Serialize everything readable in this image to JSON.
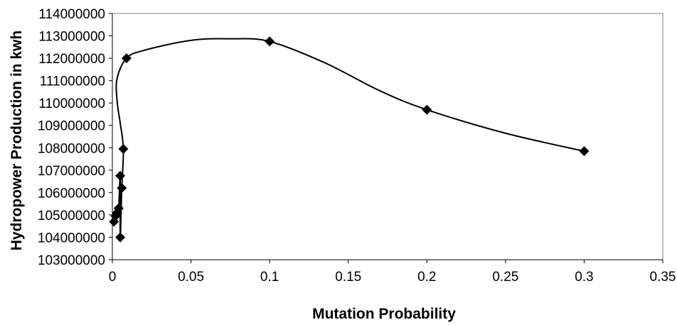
{
  "chart_data": {
    "type": "scatter",
    "title": "",
    "xlabel": "Mutation Probability",
    "ylabel": "Hydropower Production in kwh",
    "xlim": [
      0,
      0.35
    ],
    "ylim": [
      103000000,
      114000000
    ],
    "x_ticks": [
      0,
      0.05,
      0.1,
      0.15,
      0.2,
      0.25,
      0.3,
      0.35
    ],
    "x_tick_labels": [
      "0",
      "0.05",
      "0.1",
      "0.15",
      "0.2",
      "0.25",
      "0.3",
      "0.35"
    ],
    "y_ticks": [
      103000000,
      104000000,
      105000000,
      106000000,
      107000000,
      108000000,
      109000000,
      110000000,
      111000000,
      112000000,
      113000000,
      114000000
    ],
    "y_tick_labels": [
      "103000000",
      "104000000",
      "105000000",
      "106000000",
      "107000000",
      "108000000",
      "109000000",
      "110000000",
      "111000000",
      "112000000",
      "113000000",
      "114000000"
    ],
    "grid": false,
    "legend": "none",
    "marker": "diamond",
    "line": "smooth",
    "series": [
      {
        "points": [
          {
            "x": 0.001,
            "y": 104700000
          },
          {
            "x": 0.002,
            "y": 104950000
          },
          {
            "x": 0.003,
            "y": 105100000
          },
          {
            "x": 0.004,
            "y": 105300000
          },
          {
            "x": 0.005,
            "y": 106750000
          },
          {
            "x": 0.005,
            "y": 104000000
          },
          {
            "x": 0.006,
            "y": 106200000
          },
          {
            "x": 0.007,
            "y": 107950000
          },
          {
            "x": 0.009,
            "y": 112000000
          },
          {
            "x": 0.1,
            "y": 112750000
          },
          {
            "x": 0.2,
            "y": 109700000
          },
          {
            "x": 0.3,
            "y": 107850000
          }
        ],
        "line_path": [
          {
            "x": 0.001,
            "y": 104700000
          },
          {
            "x": 0.002,
            "y": 104950000
          },
          {
            "x": 0.003,
            "y": 105100000
          },
          {
            "x": 0.004,
            "y": 105300000
          },
          {
            "x": 0.005,
            "y": 106750000
          },
          {
            "x": 0.005,
            "y": 104000000
          },
          {
            "x": 0.006,
            "y": 106200000
          },
          {
            "x": 0.007,
            "y": 107950000
          },
          {
            "x": 0.005,
            "y": 109100000
          },
          {
            "x": 0.003,
            "y": 110100000
          },
          {
            "x": 0.003,
            "y": 111100000
          },
          {
            "x": 0.009,
            "y": 112000000
          },
          {
            "x": 0.02,
            "y": 112350000
          },
          {
            "x": 0.05,
            "y": 112800000
          },
          {
            "x": 0.075,
            "y": 112870000
          },
          {
            "x": 0.1,
            "y": 112750000
          },
          {
            "x": 0.135,
            "y": 111800000
          },
          {
            "x": 0.17,
            "y": 110550000
          },
          {
            "x": 0.2,
            "y": 109700000
          },
          {
            "x": 0.25,
            "y": 108650000
          },
          {
            "x": 0.3,
            "y": 107850000
          }
        ]
      }
    ]
  }
}
